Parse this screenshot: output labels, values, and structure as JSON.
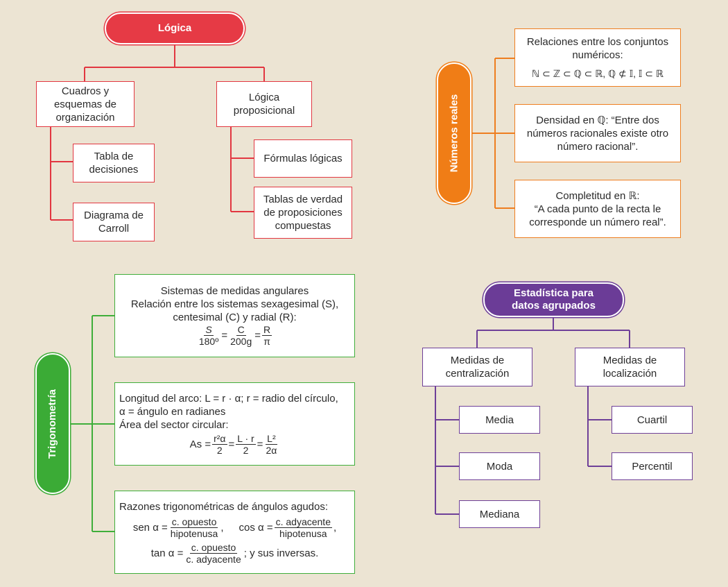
{
  "logica": {
    "title": "Lógica",
    "cuadros": "Cuadros y esquemas de organización",
    "tabla_decisiones": "Tabla de decisiones",
    "diagrama_carroll": "Diagrama de Carroll",
    "proposicional": "Lógica proposicional",
    "formulas": "Fórmulas lógicas",
    "tablas_verdad": "Tablas de verdad de proposiciones compuestas"
  },
  "numeros": {
    "title": "Números reales",
    "relaciones_text": "Relaciones entre los conjuntos numéricos:",
    "relaciones_formula": "ℕ ⊂ ℤ ⊂ ℚ ⊂ ℝ, ℚ ⊄ 𝕀, 𝕀 ⊂ ℝ",
    "densidad": "Densidad en ℚ: “Entre dos números racionales existe otro número racional”.",
    "completitud_title": "Completitud en ℝ:",
    "completitud_text": "“A cada punto de la recta le corresponde un número real”."
  },
  "trigo": {
    "title": "Trigonometría",
    "sistemas_title": "Sistemas de medidas angulares",
    "sistemas_text": "Relación entre los sistemas sexagesimal (S), centesimal (C) y radial (R):",
    "frac_s_num": "S",
    "frac_s_den": "180º",
    "frac_c_num": "C",
    "frac_c_den": "200g",
    "frac_r_num": "R",
    "frac_r_den": "π",
    "arco_line1": "Longitud del arco: L = r · α; r = radio del círculo,",
    "arco_line2": "α = ángulo en radianes",
    "arco_line3": "Área del sector circular:",
    "area_lhs": "As =",
    "area_f1_num": "r²α",
    "area_f1_den": "2",
    "area_f2_num": "L · r",
    "area_f2_den": "2",
    "area_f3_num": "L²",
    "area_f3_den": "2α",
    "razones_title": "Razones trigonométricas de ángulos agudos:",
    "sen_lhs": "sen α =",
    "sen_num": "c. opuesto",
    "sen_den": "hipotenusa",
    "cos_lhs": "cos α =",
    "cos_num": "c. adyacente",
    "cos_den": "hipotenusa",
    "tan_lhs": "tan α =",
    "tan_num": "c. opuesto",
    "tan_den": "c. adyacente",
    "tan_tail": "; y sus inversas."
  },
  "estadistica": {
    "title": "Estadística para datos agrupados",
    "centralizacion": "Medidas de centralización",
    "media": "Media",
    "moda": "Moda",
    "mediana": "Mediana",
    "localizacion": "Medidas de localización",
    "cuartil": "Cuartil",
    "percentil": "Percentil"
  },
  "colors": {
    "red": "#e23640",
    "orange": "#ee7d1e",
    "green": "#3fae3a",
    "purple": "#6e3f98"
  }
}
